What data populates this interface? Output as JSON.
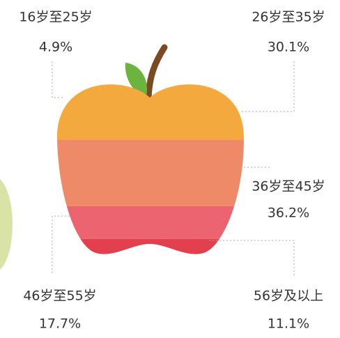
{
  "chart_data": {
    "type": "apple",
    "categories": [
      "16岁至25岁",
      "26岁至35岁",
      "36岁至45岁",
      "46岁至55岁",
      "56岁及以上"
    ],
    "values": [
      4.9,
      30.1,
      36.2,
      17.7,
      11.1
    ],
    "value_labels": [
      "4.9%",
      "30.1%",
      "36.2%",
      "17.7%",
      "11.1%"
    ],
    "colors": [
      "#f7c13c",
      "#f4a93f",
      "#ef8a68",
      "#ec6470",
      "#e3404f"
    ]
  }
}
